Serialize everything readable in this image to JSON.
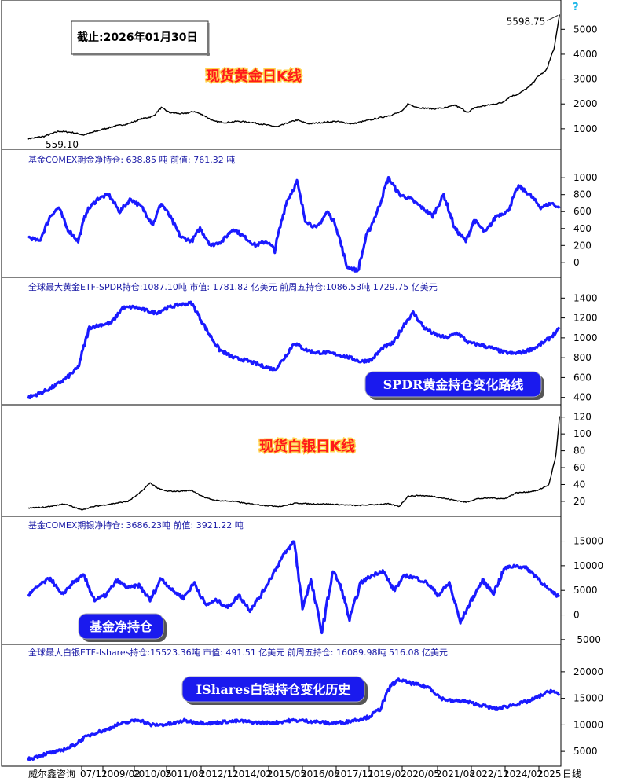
{
  "date_label": "截止:2026年01月30日",
  "help_glyph": "?",
  "x_axis": {
    "ticks": [
      "威尔鑫咨询",
      "07/11",
      "2009/02",
      "2010/05",
      "2011/08",
      "2012/11",
      "2014/02",
      "2015/05",
      "2016/08",
      "2017/11",
      "2019/02",
      "2020/05",
      "2021/08",
      "2022/11",
      "2024/02",
      "2025"
    ],
    "suffix": "日线"
  },
  "chart_data": [
    {
      "type": "line",
      "name": "gold_spot_daily",
      "annotation": "现货黄金日K线",
      "high_label": "5598.75",
      "low_label": "559.10",
      "yticks": [
        1000,
        2000,
        3000,
        4000,
        5000
      ],
      "ylim": [
        300,
        5800
      ],
      "x": [
        2006.9,
        2007.5,
        2008.0,
        2008.5,
        2008.9,
        2009.5,
        2010.0,
        2010.5,
        2011.0,
        2011.4,
        2011.7,
        2012.0,
        2012.5,
        2012.9,
        2013.3,
        2013.6,
        2014.0,
        2014.5,
        2015.0,
        2015.5,
        2015.9,
        2016.3,
        2016.6,
        2017.0,
        2017.5,
        2018.0,
        2018.6,
        2019.0,
        2019.5,
        2020.0,
        2020.4,
        2020.6,
        2021.0,
        2021.5,
        2022.0,
        2022.3,
        2022.8,
        2023.0,
        2023.5,
        2024.0,
        2024.3,
        2024.6,
        2025.0,
        2025.3,
        2025.6,
        2025.9,
        2026.08
      ],
      "y": [
        600,
        700,
        900,
        850,
        750,
        950,
        1100,
        1200,
        1400,
        1500,
        1850,
        1650,
        1600,
        1700,
        1500,
        1300,
        1250,
        1300,
        1250,
        1150,
        1080,
        1250,
        1350,
        1200,
        1250,
        1300,
        1200,
        1300,
        1420,
        1550,
        1700,
        2000,
        1850,
        1800,
        1850,
        1950,
        1650,
        1850,
        1950,
        2050,
        2300,
        2400,
        2700,
        3100,
        3350,
        4300,
        5598.75
      ]
    },
    {
      "type": "line",
      "name": "gold_comex_fund_net",
      "label": "基金COMEX期金净持仓: 638.85 吨   前值: 761.32 吨",
      "yticks": [
        0,
        200,
        400,
        600,
        800,
        1000
      ],
      "ylim": [
        -150,
        1150
      ],
      "x": [
        2006.9,
        2007.3,
        2007.7,
        2008.0,
        2008.3,
        2008.7,
        2009.0,
        2009.4,
        2009.8,
        2010.2,
        2010.6,
        2011.0,
        2011.4,
        2011.7,
        2012.0,
        2012.4,
        2012.8,
        2013.1,
        2013.5,
        2013.9,
        2014.3,
        2014.7,
        2015.1,
        2015.5,
        2015.8,
        2016.2,
        2016.6,
        2016.9,
        2017.3,
        2017.7,
        2018.0,
        2018.4,
        2018.8,
        2019.1,
        2019.5,
        2019.9,
        2020.3,
        2020.7,
        2021.1,
        2021.5,
        2021.9,
        2022.3,
        2022.7,
        2023.0,
        2023.4,
        2023.8,
        2024.2,
        2024.6,
        2025.0,
        2025.4,
        2025.8,
        2026.08
      ],
      "y": [
        300,
        250,
        550,
        650,
        400,
        250,
        600,
        750,
        800,
        600,
        750,
        650,
        450,
        700,
        550,
        300,
        250,
        400,
        200,
        250,
        400,
        300,
        200,
        250,
        150,
        700,
        950,
        500,
        400,
        600,
        450,
        -50,
        -100,
        300,
        600,
        1000,
        800,
        750,
        650,
        550,
        800,
        400,
        250,
        500,
        350,
        550,
        600,
        900,
        800,
        650,
        700,
        638.85
      ]
    },
    {
      "type": "line",
      "name": "gold_etf_spdr",
      "label": "全球最大黄金ETF-SPDR持仓:1087.10吨   市值: 1781.82 亿美元       前周五持仓:1086.53吨   1729.75 亿美元",
      "annotation": "SPDR黄金持仓变化路线",
      "yticks": [
        400,
        600,
        800,
        1000,
        1200,
        1400
      ],
      "ylim": [
        350,
        1450
      ],
      "x": [
        2006.9,
        2007.4,
        2007.9,
        2008.3,
        2008.7,
        2009.1,
        2009.5,
        2009.9,
        2010.3,
        2010.7,
        2011.1,
        2011.5,
        2011.9,
        2012.3,
        2012.8,
        2013.0,
        2013.4,
        2013.8,
        2014.3,
        2014.8,
        2015.3,
        2015.8,
        2016.1,
        2016.5,
        2016.9,
        2017.3,
        2017.7,
        2018.1,
        2018.5,
        2018.9,
        2019.3,
        2019.7,
        2020.1,
        2020.5,
        2020.8,
        2021.2,
        2021.6,
        2022.0,
        2022.4,
        2022.8,
        2023.2,
        2023.6,
        2024.0,
        2024.4,
        2024.8,
        2025.2,
        2025.6,
        2026.08
      ],
      "y": [
        400,
        450,
        520,
        600,
        700,
        1100,
        1130,
        1150,
        1300,
        1310,
        1280,
        1250,
        1300,
        1330,
        1350,
        1250,
        1050,
        880,
        800,
        770,
        720,
        680,
        780,
        950,
        880,
        850,
        850,
        830,
        800,
        760,
        780,
        900,
        950,
        1150,
        1250,
        1100,
        1030,
        1000,
        1050,
        950,
        930,
        900,
        860,
        840,
        860,
        900,
        970,
        1087.1
      ]
    },
    {
      "type": "line",
      "name": "silver_spot_daily",
      "annotation": "现货白银日K线",
      "yticks": [
        20,
        40,
        60,
        80,
        100,
        120
      ],
      "ylim": [
        5,
        130
      ],
      "x": [
        2006.9,
        2007.5,
        2008.2,
        2008.8,
        2009.3,
        2009.9,
        2010.5,
        2010.9,
        2011.3,
        2011.6,
        2011.9,
        2012.3,
        2012.8,
        2013.3,
        2013.7,
        2014.3,
        2014.9,
        2015.5,
        2016.0,
        2016.6,
        2017.1,
        2017.6,
        2018.2,
        2018.8,
        2019.3,
        2019.9,
        2020.3,
        2020.6,
        2021.0,
        2021.5,
        2022.0,
        2022.7,
        2023.1,
        2023.6,
        2024.1,
        2024.5,
        2024.9,
        2025.3,
        2025.7,
        2025.95,
        2026.08
      ],
      "y": [
        12,
        13,
        17,
        10,
        14,
        17,
        20,
        29,
        42,
        35,
        32,
        32,
        33,
        24,
        21,
        20,
        17,
        15,
        14,
        18,
        17,
        17,
        16,
        15,
        16,
        17,
        14,
        26,
        27,
        26,
        23,
        19,
        23,
        24,
        23,
        30,
        31,
        33,
        40,
        75,
        121
      ]
    },
    {
      "type": "line",
      "name": "silver_comex_fund_net",
      "label": "基金COMEX期银净持仓: 3686.23吨   前值: 3921.22 吨",
      "annotation": "基金净持仓",
      "yticks": [
        -5000,
        0,
        5000,
        10000,
        15000
      ],
      "ylim": [
        -5500,
        17000
      ],
      "x": [
        2006.9,
        2007.3,
        2007.7,
        2008.1,
        2008.5,
        2008.9,
        2009.3,
        2009.7,
        2010.1,
        2010.5,
        2010.9,
        2011.3,
        2011.7,
        2012.1,
        2012.5,
        2012.9,
        2013.3,
        2013.7,
        2014.1,
        2014.5,
        2014.9,
        2015.3,
        2015.7,
        2016.1,
        2016.5,
        2016.8,
        2017.1,
        2017.5,
        2017.9,
        2018.2,
        2018.5,
        2018.9,
        2019.3,
        2019.7,
        2020.1,
        2020.5,
        2020.9,
        2021.3,
        2021.7,
        2022.1,
        2022.5,
        2022.9,
        2023.3,
        2023.7,
        2024.1,
        2024.5,
        2024.9,
        2025.3,
        2025.7,
        2026.08
      ],
      "y": [
        4000,
        6000,
        7500,
        4000,
        6500,
        8000,
        3000,
        4000,
        7000,
        5500,
        6000,
        3000,
        7500,
        5000,
        3500,
        6500,
        2000,
        3000,
        1500,
        4000,
        1000,
        4000,
        8000,
        12000,
        15000,
        1500,
        7000,
        -3500,
        9000,
        5500,
        -1000,
        6500,
        8000,
        9000,
        5000,
        8000,
        7500,
        6500,
        4000,
        6500,
        -1500,
        3000,
        7000,
        4500,
        9500,
        10000,
        9500,
        7500,
        5000,
        3686.23
      ]
    },
    {
      "type": "line",
      "name": "silver_etf_ishares",
      "label": "全球最大白银ETF-Ishares持仓:15523.36吨   市值: 491.51 亿美元      前周五持仓: 16089.98吨   516.08 亿美元",
      "annotation": "IShares白银持仓变化历史",
      "yticks": [
        5000,
        10000,
        15000,
        20000
      ],
      "ylim": [
        2500,
        22500
      ],
      "x": [
        2006.9,
        2007.5,
        2008.0,
        2008.5,
        2008.9,
        2009.3,
        2009.7,
        2010.1,
        2010.5,
        2010.9,
        2011.3,
        2011.7,
        2012.1,
        2012.5,
        2012.9,
        2013.5,
        2014.0,
        2014.6,
        2015.2,
        2015.8,
        2016.3,
        2016.8,
        2017.3,
        2017.8,
        2018.3,
        2018.8,
        2019.2,
        2019.6,
        2020.0,
        2020.3,
        2020.6,
        2021.0,
        2021.4,
        2021.8,
        2022.2,
        2022.6,
        2023.0,
        2023.4,
        2023.8,
        2024.2,
        2024.6,
        2025.0,
        2025.4,
        2025.8,
        2026.08
      ],
      "y": [
        3500,
        4500,
        5000,
        6000,
        7500,
        8500,
        9000,
        10000,
        10500,
        11000,
        10000,
        10000,
        10200,
        10800,
        10500,
        10300,
        10600,
        10700,
        10400,
        10400,
        10800,
        10800,
        10600,
        10300,
        10500,
        11000,
        11500,
        13000,
        17500,
        18500,
        18000,
        17500,
        17000,
        15000,
        14500,
        14500,
        14000,
        13500,
        13000,
        13500,
        14000,
        14500,
        15500,
        16500,
        15523.36
      ]
    }
  ]
}
